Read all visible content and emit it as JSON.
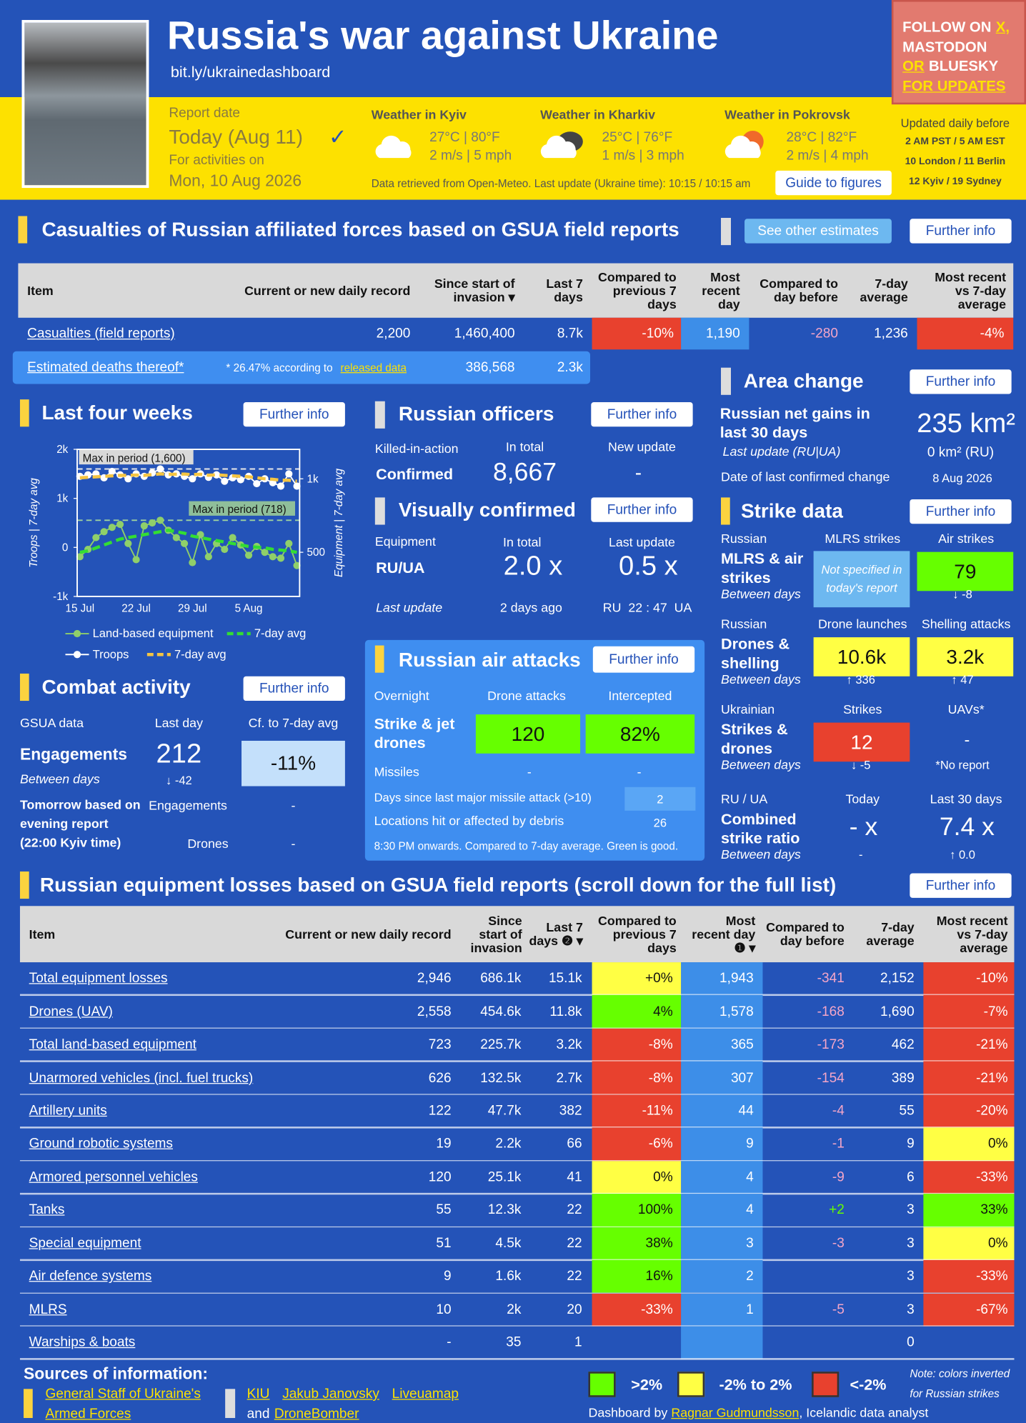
{
  "header": {
    "title": "Russia's war against Ukraine",
    "link": "bit.ly/ukrainedashboard",
    "follow": [
      "FOLLOW ON",
      "X,",
      "MASTODON",
      "OR",
      "BLUESKY",
      "FOR UPDATES"
    ],
    "report_date_label": "Report date",
    "report_date": "Today (Aug 11)",
    "check": "✓",
    "activities_label": "For activities on",
    "activities_date": "Mon, 10 Aug 2026",
    "weather": [
      {
        "title": "Weather in Kyiv",
        "temp": "27°C | 80°F",
        "wind": "2 m/s | 5 mph",
        "icon": "cloud"
      },
      {
        "title": "Weather in Kharkiv",
        "temp": "25°C | 76°F",
        "wind": "1 m/s | 3 mph",
        "icon": "overcast"
      },
      {
        "title": "Weather in Pokrovsk",
        "temp": "28°C | 82°F",
        "wind": "2 m/s | 4 mph",
        "icon": "partly-cloudy"
      }
    ],
    "weather_note": "Data retrieved from Open-Meteo. Last update (Ukraine time): 10:15 / 10:15 am",
    "guide": "Guide to figures",
    "updated": [
      "Updated daily before",
      "2 AM PST / 5 AM EST",
      "10 London / 11 Berlin",
      "12 Kyiv / 19 Sydney"
    ]
  },
  "casualties": {
    "title": "Casualties of Russian affiliated forces based on GSUA field reports",
    "buttons": [
      "See other estimates",
      "Further info"
    ],
    "columns": [
      "Item",
      "Current or new daily record",
      "Since start of invasion ▾",
      "Last 7 days",
      "Compared to previous 7 days",
      "Most recent day",
      "Compared to day before",
      "7-day average",
      "Most recent vs 7-day average"
    ],
    "rows": [
      {
        "cells": [
          "Casualties (field reports)",
          "2,200",
          "1,460,400",
          "8.7k",
          "-10%",
          "1,190",
          "-280",
          "1,236",
          "-4%"
        ],
        "colors": [
          "red",
          "red"
        ]
      }
    ],
    "estimated": {
      "label": "Estimated deaths thereof*",
      "note": "* 26.47% according to",
      "note_link": "released data",
      "total": "386,568",
      "last7": "2.3k"
    }
  },
  "last_four_weeks": {
    "button": "Further info"
  },
  "chart_data": {
    "type": "line",
    "title": "Last four weeks",
    "ylabel": "Troops | 7-day avg",
    "y2label": "Equipment | 7-day avg",
    "categories": [
      "15 Jul",
      null,
      null,
      null,
      null,
      null,
      null,
      "22 Jul",
      null,
      null,
      null,
      null,
      null,
      null,
      "29 Jul",
      null,
      null,
      null,
      null,
      null,
      null,
      "5 Aug",
      null,
      null,
      null,
      null,
      null,
      null
    ],
    "ylim": [
      -1000,
      2000
    ],
    "yticks": [
      {
        "value": -1000,
        "label": "-1k"
      },
      0,
      {
        "value": 1000,
        "label": "1k"
      },
      {
        "value": 2000,
        "label": "2k"
      }
    ],
    "y2lim": [
      200,
      1200
    ],
    "y2ticks": [
      500,
      {
        "value": 1000,
        "label": "1k"
      }
    ],
    "series": [
      {
        "name": "Land-based equipment",
        "color": "#8fcf6a",
        "axis": "y2",
        "style": "solid",
        "values": [
          470,
          520,
          600,
          640,
          670,
          690,
          560,
          450,
          680,
          700,
          718,
          650,
          600,
          560,
          430,
          620,
          470,
          560,
          520,
          600,
          550,
          480,
          540,
          500,
          470,
          460,
          560,
          410
        ]
      },
      {
        "name": "7-day avg",
        "color": "#33dd33",
        "axis": "y2",
        "style": "dashed",
        "values": [
          500,
          510,
          530,
          550,
          570,
          590,
          600,
          610,
          620,
          630,
          640,
          650,
          640,
          630,
          610,
          600,
          590,
          580,
          570,
          560,
          550,
          540,
          535,
          530,
          520,
          515,
          510,
          500
        ]
      },
      {
        "name": "Troops",
        "color": "#ffffff",
        "axis": "y",
        "style": "solid",
        "values": [
          1450,
          1480,
          1500,
          1420,
          1550,
          1480,
          1400,
          1500,
          1450,
          1520,
          1600,
          1480,
          1500,
          1450,
          1400,
          1500,
          1430,
          1480,
          1350,
          1420,
          1380,
          1450,
          1300,
          1400,
          1320,
          1250,
          1500,
          1250
        ]
      },
      {
        "name": "7-day avg",
        "color": "#f5c542",
        "axis": "y",
        "style": "dashed",
        "values": [
          1420,
          1430,
          1440,
          1450,
          1460,
          1470,
          1469,
          1476,
          1469,
          1486,
          1500,
          1490,
          1493,
          1497,
          1483,
          1493,
          1473,
          1480,
          1470,
          1460,
          1450,
          1440,
          1420,
          1400,
          1390,
          1370,
          1370,
          1350
        ]
      }
    ],
    "annotations": [
      {
        "text": "Max in period (1,600)",
        "value": 1600,
        "axis": "y"
      },
      {
        "text": "Max in period (718)",
        "value": 718,
        "axis": "y2"
      }
    ]
  },
  "combat": {
    "title": "Combat activity",
    "button": "Further info",
    "headers": [
      "GSUA data",
      "Last day",
      "Cf. to 7-day avg"
    ],
    "label": "Engagements",
    "value": "212",
    "compare": "-11%",
    "between_label": "Between days",
    "between": "↓ -42",
    "tomorrow": "Tomorrow based on evening report (22:00 Kyiv time)",
    "tomorrow_rows": [
      [
        "Engagements",
        "-"
      ],
      [
        "Drones",
        "-"
      ]
    ]
  },
  "officers": {
    "title": "Russian officers",
    "button": "Further info",
    "headers": [
      "Killed-in-action",
      "In total",
      "New update"
    ],
    "label": "Confirmed",
    "total": "8,667",
    "update": "-"
  },
  "visual": {
    "title": "Visually confirmed",
    "button": "Further info",
    "headers": [
      "Equipment",
      "In total",
      "Last update"
    ],
    "label": "RU/UA",
    "total": "2.0 x",
    "update": "0.5 x",
    "last_label": "Last update",
    "last": "2 days ago",
    "time": "RU  22 : 47  UA"
  },
  "air": {
    "title": "Russian air attacks",
    "button": "Further info",
    "headers": [
      "Overnight",
      "Drone attacks",
      "Intercepted"
    ],
    "label": "Strike & jet drones",
    "drones": "120",
    "intercepted": "82%",
    "missiles_label": "Missiles",
    "missiles": [
      "-",
      "-"
    ],
    "days_label": "Days since last major missile attack (>10)",
    "days": "2",
    "locations_label": "Locations hit or affected by debris",
    "locations": "26",
    "note": "8:30 PM onwards. Compared to 7-day average. Green is good."
  },
  "area": {
    "title": "Area change",
    "button": "Further info",
    "label": "Russian net gains in last 30 days",
    "value": "235 km²",
    "update_label": "Last update (RU|UA)",
    "update": "0 km² (RU)",
    "date_label": "Date of last confirmed change",
    "date": "8 Aug 2026"
  },
  "strike": {
    "title": "Strike data",
    "button": "Further info",
    "between_label": "Between days",
    "groups": [
      {
        "header": [
          "Russian",
          "MLRS strikes",
          "Air strikes"
        ],
        "label": "MLRS & air strikes",
        "values": [
          "Not specified in today's report",
          "79"
        ],
        "colors": [
          "lightblue",
          "green"
        ],
        "between": [
          null,
          "↓ -8"
        ]
      },
      {
        "header": [
          "Russian",
          "Drone launches",
          "Shelling attacks"
        ],
        "label": "Drones & shelling",
        "values": [
          "10.6k",
          "3.2k"
        ],
        "colors": [
          "yellow",
          "yellow"
        ],
        "between": [
          "↑ 336",
          "↑ 47"
        ]
      },
      {
        "header": [
          "Ukrainian",
          "Strikes",
          "UAVs*"
        ],
        "label": "Strikes & drones",
        "values": [
          "12",
          "-"
        ],
        "colors": [
          "red",
          null
        ],
        "between": [
          "↓ -5",
          "*No report"
        ]
      },
      {
        "header": [
          "RU / UA",
          "Today",
          "Last 30 days"
        ],
        "label": "Combined strike ratio",
        "values": [
          "- x",
          "7.4 x"
        ],
        "colors": [
          null,
          null
        ],
        "between": [
          "-",
          "↑ 0.0"
        ]
      }
    ]
  },
  "equipment": {
    "title": "Russian equipment losses based on GSUA field reports (scroll down for the full list)",
    "button": "Further info",
    "columns": [
      "Item",
      "Current or new daily record",
      "Since start of invasion",
      "Last 7 days ❷ ▾",
      "Compared to previous 7 days",
      "Most recent day ❶ ▾",
      "Compared to day before",
      "7-day average",
      "Most recent vs 7-day average"
    ],
    "rows": [
      {
        "cells": [
          "Total equipment losses",
          "2,946",
          "686.1k",
          "15.1k",
          "+0%",
          "1,943",
          "-341",
          "2,152",
          "-10%"
        ],
        "colors": [
          "yellow",
          "red"
        ]
      },
      {
        "cells": [
          "Drones (UAV)",
          "2,558",
          "454.6k",
          "11.8k",
          "4%",
          "1,578",
          "-168",
          "1,690",
          "-7%"
        ],
        "colors": [
          "green",
          "red"
        ]
      },
      {
        "cells": [
          "Total land-based equipment",
          "723",
          "225.7k",
          "3.2k",
          "-8%",
          "365",
          "-173",
          "462",
          "-21%"
        ],
        "colors": [
          "red",
          "red"
        ]
      },
      {
        "cells": [
          "Unarmored vehicles (incl. fuel trucks)",
          "626",
          "132.5k",
          "2.7k",
          "-8%",
          "307",
          "-154",
          "389",
          "-21%"
        ],
        "colors": [
          "red",
          "red"
        ]
      },
      {
        "cells": [
          "Artillery units",
          "122",
          "47.7k",
          "382",
          "-11%",
          "44",
          "-4",
          "55",
          "-20%"
        ],
        "colors": [
          "red",
          "red"
        ]
      },
      {
        "cells": [
          "Ground robotic systems",
          "19",
          "2.2k",
          "66",
          "-6%",
          "9",
          "-1",
          "9",
          "0%"
        ],
        "colors": [
          "red",
          "yellow"
        ]
      },
      {
        "cells": [
          "Armored personnel vehicles",
          "120",
          "25.1k",
          "41",
          "0%",
          "4",
          "-9",
          "6",
          "-33%"
        ],
        "colors": [
          "yellow",
          "red"
        ]
      },
      {
        "cells": [
          "Tanks",
          "55",
          "12.3k",
          "22",
          "100%",
          "4",
          "+2",
          "3",
          "33%"
        ],
        "colors": [
          "green",
          "green"
        ]
      },
      {
        "cells": [
          "Special equipment",
          "51",
          "4.5k",
          "22",
          "38%",
          "3",
          "-3",
          "3",
          "0%"
        ],
        "colors": [
          "green",
          "yellow"
        ]
      },
      {
        "cells": [
          "Air defence systems",
          "9",
          "1.6k",
          "22",
          "16%",
          "2",
          null,
          "3",
          "-33%"
        ],
        "colors": [
          "green",
          "red"
        ]
      },
      {
        "cells": [
          "MLRS",
          "10",
          "2k",
          "20",
          "-33%",
          "1",
          "-5",
          "3",
          "-67%"
        ],
        "colors": [
          "red",
          "red"
        ]
      },
      {
        "cells": [
          "Warships & boats",
          "-",
          "35",
          "1",
          null,
          null,
          null,
          "0",
          null
        ],
        "colors": [
          null,
          null
        ]
      }
    ]
  },
  "footer": {
    "sources_title": "Sources of information:",
    "primary_source": "General Staff of Ukraine's Armed Forces",
    "sources": [
      "KIU",
      "Jakub Janovsky",
      "Liveuamap"
    ],
    "and": "and",
    "last_source": "DroneBomber",
    "legend": [
      {
        "label": ">2%",
        "color": "green"
      },
      {
        "label": "-2% to 2%",
        "color": "yellow"
      },
      {
        "label": "<-2%",
        "color": "red"
      }
    ],
    "note": "Note: colors inverted for Russian strikes",
    "credit": [
      "Dashboard by",
      "Ragnar Gudmundsson",
      ", Icelandic data analyst"
    ]
  }
}
